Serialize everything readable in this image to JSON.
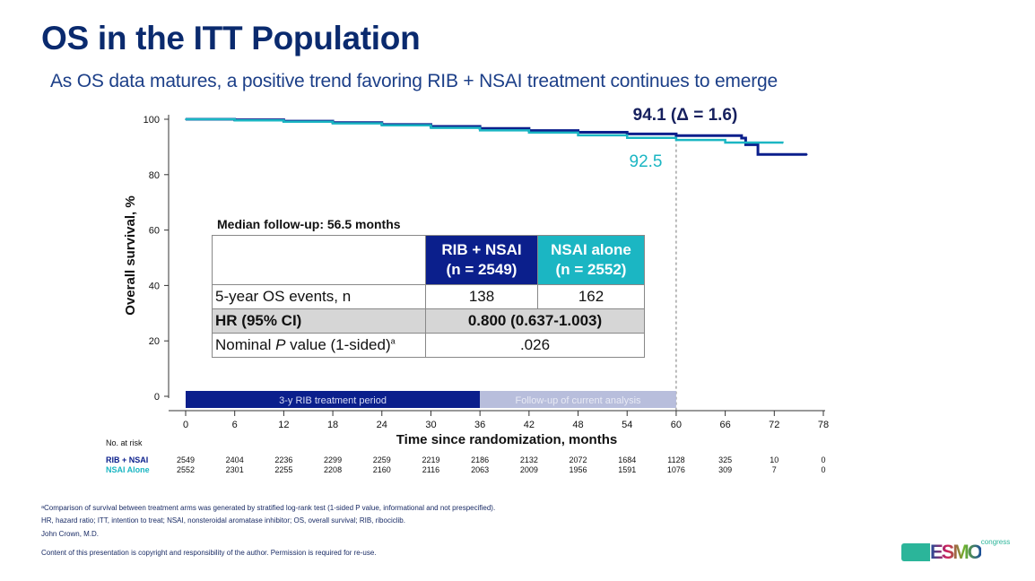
{
  "title": "OS in the ITT Population",
  "subtitle": "As OS data matures, a positive trend favoring RIB + NSAI treatment continues to emerge",
  "colors": {
    "rib": "#0b1f8c",
    "nsai": "#1bb6c3",
    "title": "#0a2a6e",
    "treatment_bar": "#0b1f8c",
    "followup_bar": "#b8bedc"
  },
  "chart_data": {
    "type": "line",
    "subtype": "kaplan-meier",
    "xlabel": "Time since randomization, months",
    "ylabel": "Overall survival, %",
    "xlim": [
      0,
      78
    ],
    "ylim": [
      0,
      100
    ],
    "xticks": [
      0,
      6,
      12,
      18,
      24,
      30,
      36,
      42,
      48,
      54,
      60,
      66,
      72,
      78
    ],
    "yticks": [
      0,
      20,
      40,
      60,
      80,
      100
    ],
    "grid": false,
    "reference_line_x": 60,
    "series": [
      {
        "name": "RIB + NSAI",
        "color": "#0b1f8c",
        "x": [
          0,
          6,
          12,
          18,
          24,
          30,
          36,
          42,
          48,
          54,
          60,
          68,
          68.5,
          69.5,
          70,
          76
        ],
        "y": [
          100,
          99.8,
          99.3,
          98.8,
          98.1,
          97.4,
          96.7,
          95.9,
          95.3,
          94.7,
          94.1,
          93.2,
          90.8,
          90.8,
          87.3,
          87.3
        ]
      },
      {
        "name": "NSAI alone",
        "color": "#1bb6c3",
        "x": [
          0,
          6,
          12,
          18,
          24,
          30,
          36,
          42,
          48,
          54,
          60,
          66,
          73
        ],
        "y": [
          100,
          99.6,
          99.1,
          98.5,
          97.8,
          96.9,
          96.0,
          95.2,
          94.2,
          93.3,
          92.5,
          91.6,
          91.4
        ]
      }
    ],
    "annotations": {
      "rib_value": "94.1 (Δ = 1.6)",
      "nsai_value": "92.5"
    },
    "periods": [
      {
        "label": "3-y RIB treatment period",
        "start": 0,
        "end": 36
      },
      {
        "label": "Follow-up of current analysis",
        "start": 36,
        "end": 60
      }
    ],
    "at_risk": {
      "header": "No. at risk",
      "rows": [
        {
          "name": "RIB + NSAI",
          "values": [
            "2549",
            "2404",
            "2236",
            "2299",
            "2259",
            "2219",
            "2186",
            "2132",
            "2072",
            "1684",
            "1128",
            "325",
            "10",
            "0"
          ]
        },
        {
          "name": "NSAI Alone",
          "values": [
            "2552",
            "2301",
            "2255",
            "2208",
            "2160",
            "2116",
            "2063",
            "2009",
            "1956",
            "1591",
            "1076",
            "309",
            "7",
            "0"
          ]
        }
      ]
    }
  },
  "table": {
    "caption": "Median follow-up: 56.5 months",
    "col1": [
      "RIB + NSAI",
      "(n = 2549)"
    ],
    "col2": [
      "NSAI alone",
      "(n = 2552)"
    ],
    "rows": [
      {
        "label": "5-year OS events, n",
        "v1": "138",
        "v2": "162"
      },
      {
        "label": "HR (95% CI)",
        "v": "0.800 (0.637-1.003)"
      },
      {
        "label_pre": "Nominal ",
        "label_italic": "P",
        "label_post": " value (1-sided)",
        "label_sup": "a",
        "v": ".026"
      }
    ]
  },
  "footnotes": [
    "ᵃComparison of survival between treatment arms was generated by stratified log-rank test (1-sided P value, informational and not prespecified).",
    "HR, hazard ratio; ITT, intention to treat; NSAI, nonsteroidal aromatase inhibitor; OS, overall survival; RIB, ribociclib.",
    "John Crown, M.D.",
    "Content of this presentation is copyright and responsibility of the author. Permission is required for re-use."
  ],
  "logo": {
    "text": "ESMO",
    "sub": "congress"
  }
}
